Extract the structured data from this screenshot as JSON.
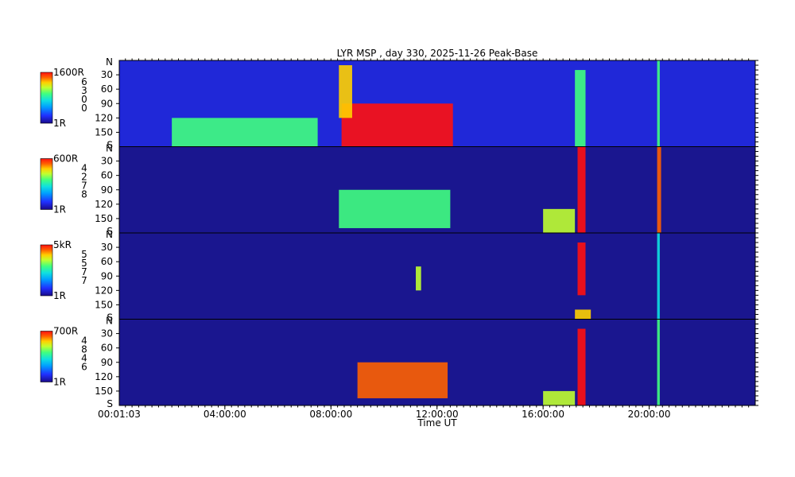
{
  "chart_data": {
    "type": "heatmap",
    "title": "LYR MSP , day 330, 2025-11-26 Peak-Base",
    "xlabel": "Time UT",
    "x_start_label": "00:01:03",
    "x_ticks": [
      "04:00:00",
      "08:00:00",
      "12:00:00",
      "16:00:00",
      "20:00:00"
    ],
    "x_range_hours": [
      0.0175,
      24
    ],
    "y_axis": {
      "top_label": "N",
      "bottom_label": "S",
      "ticks": [
        "30",
        "60",
        "90",
        "120",
        "150"
      ],
      "range_deg": [
        0,
        180
      ]
    },
    "colorscale": [
      "#1a0a8a",
      "#2030ff",
      "#00a0ff",
      "#10e0e0",
      "#40ff80",
      "#c0ff30",
      "#ffd000",
      "#ff6000",
      "#ff1010"
    ],
    "panels": [
      {
        "channel": "6300",
        "scale_max": "1600R",
        "scale_min": "1R",
        "features": [
          {
            "t": [
              8.4,
              12.6
            ],
            "deg": [
              90,
              180
            ],
            "level": 0.95
          },
          {
            "t": [
              8.3,
              8.8
            ],
            "deg": [
              10,
              120
            ],
            "level": 0.8
          },
          {
            "t": [
              17.2,
              17.6
            ],
            "deg": [
              20,
              180
            ],
            "level": 0.55
          },
          {
            "t": [
              20.3,
              20.4
            ],
            "deg": [
              0,
              180
            ],
            "level": 0.5
          },
          {
            "t": [
              2.0,
              7.5
            ],
            "deg": [
              120,
              180
            ],
            "level": 0.45
          }
        ]
      },
      {
        "channel": "4278",
        "scale_max": "600R",
        "scale_min": "1R",
        "features": [
          {
            "t": [
              17.3,
              17.6
            ],
            "deg": [
              0,
              180
            ],
            "level": 1.0
          },
          {
            "t": [
              20.3,
              20.45
            ],
            "deg": [
              0,
              180
            ],
            "level": 0.85
          },
          {
            "t": [
              8.3,
              12.5
            ],
            "deg": [
              90,
              170
            ],
            "level": 0.5
          },
          {
            "t": [
              16.0,
              17.2
            ],
            "deg": [
              130,
              180
            ],
            "level": 0.6
          }
        ]
      },
      {
        "channel": "5577",
        "scale_max": "5kR",
        "scale_min": "1R",
        "features": [
          {
            "t": [
              17.3,
              17.6
            ],
            "deg": [
              20,
              130
            ],
            "level": 0.95
          },
          {
            "t": [
              17.2,
              17.8
            ],
            "deg": [
              160,
              180
            ],
            "level": 0.8
          },
          {
            "t": [
              20.3,
              20.4
            ],
            "deg": [
              0,
              180
            ],
            "level": 0.35
          },
          {
            "t": [
              11.2,
              11.4
            ],
            "deg": [
              70,
              120
            ],
            "level": 0.6
          }
        ]
      },
      {
        "channel": "4846",
        "scale_max": "700R",
        "scale_min": "1R",
        "features": [
          {
            "t": [
              9.0,
              12.4
            ],
            "deg": [
              90,
              165
            ],
            "level": 0.85
          },
          {
            "t": [
              17.3,
              17.6
            ],
            "deg": [
              20,
              180
            ],
            "level": 0.95
          },
          {
            "t": [
              20.3,
              20.4
            ],
            "deg": [
              0,
              180
            ],
            "level": 0.5
          },
          {
            "t": [
              16.0,
              17.2
            ],
            "deg": [
              150,
              180
            ],
            "level": 0.65
          }
        ]
      }
    ]
  }
}
